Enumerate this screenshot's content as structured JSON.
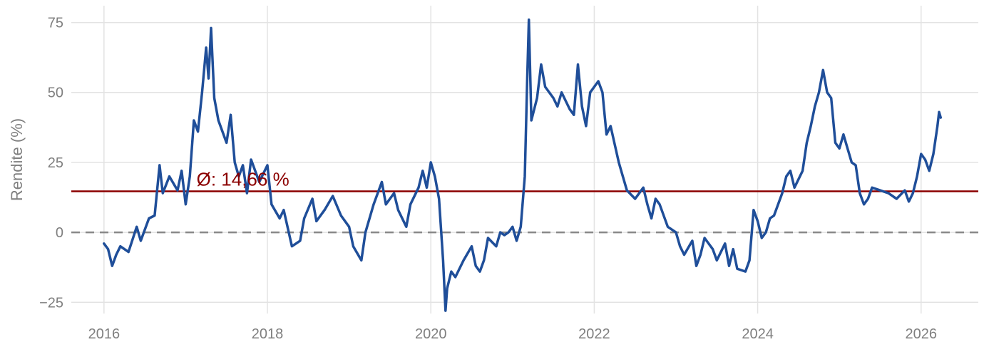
{
  "chart_data": {
    "type": "line",
    "title": "",
    "xlabel": "",
    "ylabel": "Rendite (%)",
    "xlim": [
      2015.6,
      2026.7
    ],
    "ylim": [
      -29,
      81
    ],
    "x_ticks": [
      2016,
      2018,
      2020,
      2022,
      2024,
      2026
    ],
    "x_tick_labels": [
      "2016",
      "2018",
      "2020",
      "2022",
      "2024",
      "2026"
    ],
    "y_ticks": [
      -25,
      0,
      25,
      50,
      75
    ],
    "y_tick_labels": [
      "−25",
      "0",
      "25",
      "50",
      "75"
    ],
    "grid": true,
    "legend": "none",
    "reference_lines": [
      {
        "kind": "zero",
        "value": 0,
        "style": "dashed",
        "color": "#888888"
      },
      {
        "kind": "mean",
        "value": 14.66,
        "style": "solid",
        "color": "#8b0000",
        "label": "Ø: 14,66 %",
        "label_x": 2017.7
      }
    ],
    "series": [
      {
        "color": "#1f4e99",
        "points": [
          [
            2016.0,
            -4
          ],
          [
            2016.05,
            -6
          ],
          [
            2016.1,
            -12
          ],
          [
            2016.15,
            -8
          ],
          [
            2016.2,
            -5
          ],
          [
            2016.3,
            -7
          ],
          [
            2016.4,
            2
          ],
          [
            2016.45,
            -3
          ],
          [
            2016.55,
            5
          ],
          [
            2016.62,
            6
          ],
          [
            2016.68,
            24
          ],
          [
            2016.72,
            14
          ],
          [
            2016.8,
            20
          ],
          [
            2016.9,
            15
          ],
          [
            2016.95,
            22
          ],
          [
            2017.0,
            10
          ],
          [
            2017.05,
            20
          ],
          [
            2017.1,
            40
          ],
          [
            2017.15,
            36
          ],
          [
            2017.2,
            50
          ],
          [
            2017.25,
            66
          ],
          [
            2017.28,
            55
          ],
          [
            2017.31,
            73
          ],
          [
            2017.35,
            48
          ],
          [
            2017.4,
            40
          ],
          [
            2017.5,
            32
          ],
          [
            2017.55,
            42
          ],
          [
            2017.6,
            25
          ],
          [
            2017.65,
            20
          ],
          [
            2017.7,
            24
          ],
          [
            2017.75,
            14
          ],
          [
            2017.8,
            26
          ],
          [
            2017.9,
            18
          ],
          [
            2018.0,
            24
          ],
          [
            2018.05,
            10
          ],
          [
            2018.15,
            5
          ],
          [
            2018.2,
            8
          ],
          [
            2018.3,
            -5
          ],
          [
            2018.4,
            -3
          ],
          [
            2018.45,
            5
          ],
          [
            2018.55,
            12
          ],
          [
            2018.6,
            4
          ],
          [
            2018.7,
            8
          ],
          [
            2018.8,
            13
          ],
          [
            2018.9,
            6
          ],
          [
            2019.0,
            2
          ],
          [
            2019.05,
            -5
          ],
          [
            2019.15,
            -10
          ],
          [
            2019.2,
            0
          ],
          [
            2019.3,
            10
          ],
          [
            2019.4,
            18
          ],
          [
            2019.45,
            10
          ],
          [
            2019.55,
            14
          ],
          [
            2019.6,
            8
          ],
          [
            2019.7,
            2
          ],
          [
            2019.75,
            10
          ],
          [
            2019.85,
            16
          ],
          [
            2019.9,
            22
          ],
          [
            2019.95,
            16
          ],
          [
            2020.0,
            25
          ],
          [
            2020.05,
            20
          ],
          [
            2020.1,
            12
          ],
          [
            2020.15,
            -10
          ],
          [
            2020.18,
            -28
          ],
          [
            2020.2,
            -20
          ],
          [
            2020.25,
            -14
          ],
          [
            2020.3,
            -16
          ],
          [
            2020.4,
            -10
          ],
          [
            2020.5,
            -5
          ],
          [
            2020.55,
            -12
          ],
          [
            2020.6,
            -14
          ],
          [
            2020.65,
            -10
          ],
          [
            2020.7,
            -2
          ],
          [
            2020.8,
            -5
          ],
          [
            2020.85,
            0
          ],
          [
            2020.9,
            -1
          ],
          [
            2020.95,
            0
          ],
          [
            2021.0,
            2
          ],
          [
            2021.05,
            -3
          ],
          [
            2021.1,
            2
          ],
          [
            2021.15,
            20
          ],
          [
            2021.18,
            55
          ],
          [
            2021.2,
            76
          ],
          [
            2021.23,
            40
          ],
          [
            2021.3,
            48
          ],
          [
            2021.35,
            60
          ],
          [
            2021.4,
            52
          ],
          [
            2021.5,
            48
          ],
          [
            2021.55,
            45
          ],
          [
            2021.6,
            50
          ],
          [
            2021.7,
            44
          ],
          [
            2021.75,
            42
          ],
          [
            2021.8,
            60
          ],
          [
            2021.85,
            45
          ],
          [
            2021.9,
            38
          ],
          [
            2021.95,
            50
          ],
          [
            2022.05,
            54
          ],
          [
            2022.1,
            50
          ],
          [
            2022.15,
            35
          ],
          [
            2022.2,
            38
          ],
          [
            2022.3,
            25
          ],
          [
            2022.35,
            20
          ],
          [
            2022.4,
            15
          ],
          [
            2022.5,
            12
          ],
          [
            2022.6,
            16
          ],
          [
            2022.65,
            10
          ],
          [
            2022.7,
            5
          ],
          [
            2022.75,
            12
          ],
          [
            2022.8,
            10
          ],
          [
            2022.9,
            2
          ],
          [
            2023.0,
            0
          ],
          [
            2023.05,
            -5
          ],
          [
            2023.1,
            -8
          ],
          [
            2023.2,
            -3
          ],
          [
            2023.25,
            -12
          ],
          [
            2023.3,
            -8
          ],
          [
            2023.35,
            -2
          ],
          [
            2023.45,
            -6
          ],
          [
            2023.5,
            -10
          ],
          [
            2023.6,
            -4
          ],
          [
            2023.65,
            -12
          ],
          [
            2023.7,
            -6
          ],
          [
            2023.75,
            -13
          ],
          [
            2023.85,
            -14
          ],
          [
            2023.9,
            -10
          ],
          [
            2023.95,
            8
          ],
          [
            2024.0,
            4
          ],
          [
            2024.05,
            -2
          ],
          [
            2024.1,
            0
          ],
          [
            2024.15,
            5
          ],
          [
            2024.2,
            6
          ],
          [
            2024.3,
            14
          ],
          [
            2024.35,
            20
          ],
          [
            2024.4,
            22
          ],
          [
            2024.45,
            16
          ],
          [
            2024.55,
            22
          ],
          [
            2024.6,
            32
          ],
          [
            2024.65,
            38
          ],
          [
            2024.7,
            45
          ],
          [
            2024.75,
            50
          ],
          [
            2024.8,
            58
          ],
          [
            2024.85,
            50
          ],
          [
            2024.9,
            48
          ],
          [
            2024.95,
            32
          ],
          [
            2025.0,
            30
          ],
          [
            2025.05,
            35
          ],
          [
            2025.1,
            30
          ],
          [
            2025.15,
            25
          ],
          [
            2025.2,
            24
          ],
          [
            2025.25,
            14
          ],
          [
            2025.3,
            10
          ],
          [
            2025.35,
            12
          ],
          [
            2025.4,
            16
          ],
          [
            2025.5,
            15
          ],
          [
            2025.6,
            14
          ],
          [
            2025.7,
            12
          ],
          [
            2025.8,
            15
          ],
          [
            2025.85,
            11
          ],
          [
            2025.9,
            14
          ],
          [
            2025.95,
            20
          ],
          [
            2026.0,
            28
          ],
          [
            2026.05,
            26
          ],
          [
            2026.1,
            22
          ],
          [
            2026.15,
            28
          ],
          [
            2026.2,
            38
          ],
          [
            2026.22,
            43
          ],
          [
            2026.24,
            41
          ]
        ]
      }
    ]
  }
}
